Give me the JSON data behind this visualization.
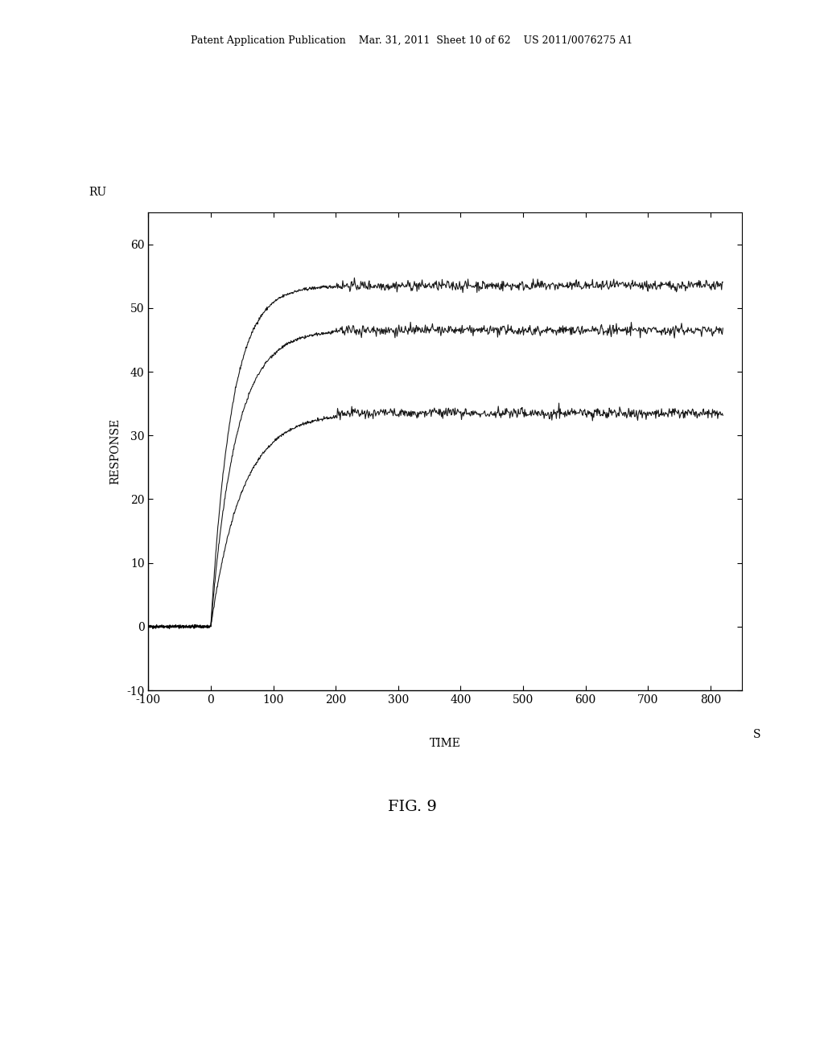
{
  "background_color": "#ffffff",
  "header_text": "Patent Application Publication    Mar. 31, 2011  Sheet 10 of 62    US 2011/0076275 A1",
  "figure_label": "FIG. 9",
  "ru_label": "RU",
  "ylabel": "RESPONSE",
  "xlabel": "TIME",
  "xlabel_suffix": "S",
  "xlim": [
    -100,
    850
  ],
  "ylim": [
    -10,
    65
  ],
  "xticks": [
    -100,
    0,
    100,
    200,
    300,
    400,
    500,
    600,
    700,
    800
  ],
  "yticks": [
    -10,
    0,
    10,
    20,
    30,
    40,
    50,
    60
  ],
  "curve_color": "#000000",
  "noise_amplitude": 0.4,
  "curves": [
    {
      "plateau": 53.5,
      "rise_rate": 0.03,
      "start_x": 0
    },
    {
      "plateau": 46.5,
      "rise_rate": 0.025,
      "start_x": 0
    },
    {
      "plateau": 33.5,
      "rise_rate": 0.02,
      "start_x": 0
    }
  ]
}
